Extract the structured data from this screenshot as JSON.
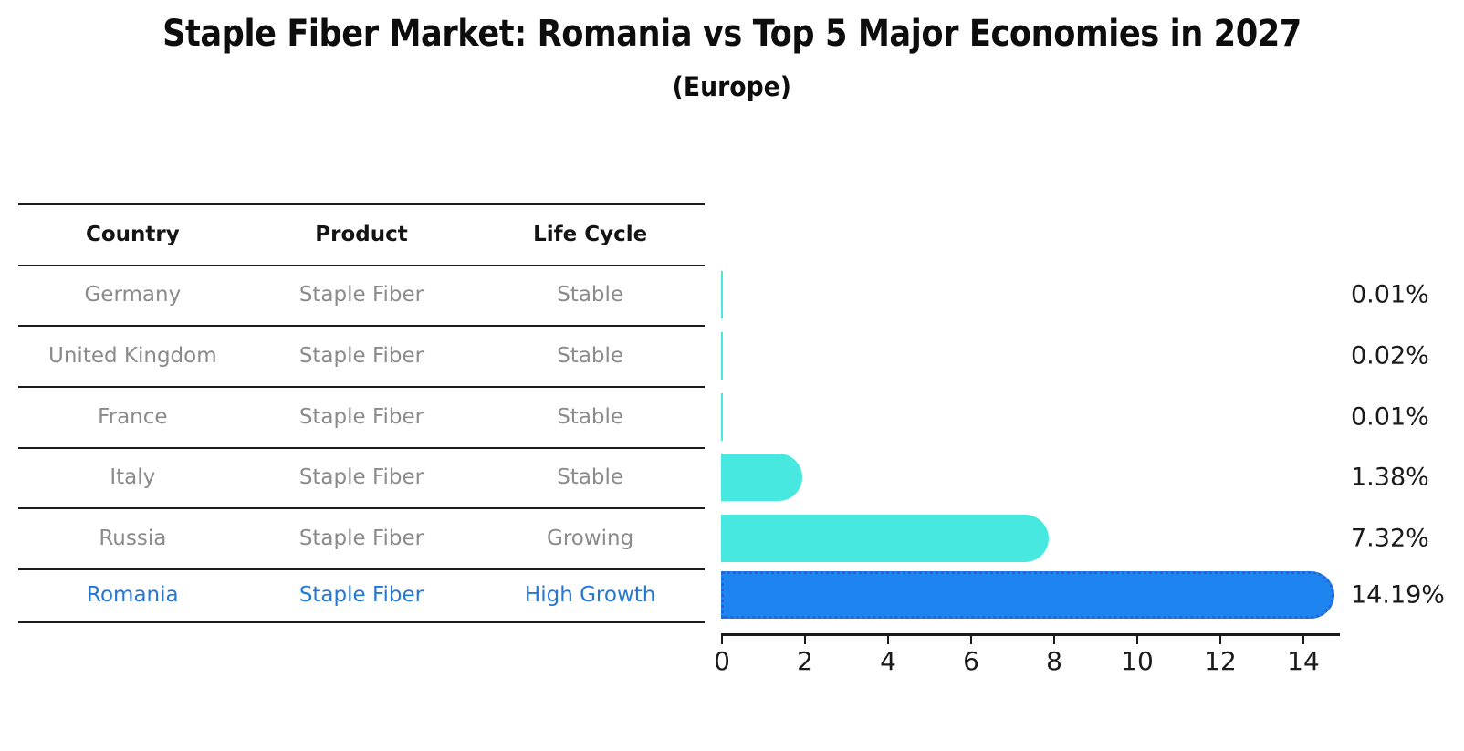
{
  "title": "Staple Fiber Market: Romania vs Top 5 Major Economies in 2027",
  "subtitle": "(Europe)",
  "table": {
    "headers": [
      "Country",
      "Product",
      "Life Cycle"
    ],
    "rows": [
      {
        "country": "Germany",
        "product": "Staple Fiber",
        "life_cycle": "Stable",
        "highlight": false
      },
      {
        "country": "United Kingdom",
        "product": "Staple Fiber",
        "life_cycle": "Stable",
        "highlight": false
      },
      {
        "country": "France",
        "product": "Staple Fiber",
        "life_cycle": "Stable",
        "highlight": false
      },
      {
        "country": "Italy",
        "product": "Staple Fiber",
        "life_cycle": "Stable",
        "highlight": false
      },
      {
        "country": "Russia",
        "product": "Staple Fiber",
        "life_cycle": "Growing",
        "highlight": false
      },
      {
        "country": "Romania",
        "product": "Staple Fiber",
        "life_cycle": "High Growth",
        "highlight": true
      }
    ]
  },
  "chart_data": {
    "type": "bar",
    "orientation": "horizontal",
    "title": "Staple Fiber Market: Romania vs Top 5 Major Economies in 2027",
    "subtitle": "(Europe)",
    "categories": [
      "Germany",
      "United Kingdom",
      "France",
      "Italy",
      "Russia",
      "Romania"
    ],
    "values": [
      0.01,
      0.02,
      0.01,
      1.38,
      7.32,
      14.19
    ],
    "value_labels": [
      "0.01%",
      "0.02%",
      "0.01%",
      "1.38%",
      "7.32%",
      "14.19%"
    ],
    "xlabel": "",
    "ylabel": "",
    "xlim": [
      0,
      14.9
    ],
    "xticks": [
      0,
      2,
      4,
      6,
      8,
      10,
      12,
      14
    ],
    "grid": false,
    "legend": false,
    "highlight_index": 5,
    "bar_color": "#47e8e0",
    "highlight_bar_color": "#1d84f0",
    "highlight_bar_border": "#2b63d6"
  },
  "colors": {
    "background": "#ffffff",
    "table_line": "#1c1c1c",
    "header_text": "#141414",
    "row_text": "#8b8b8b",
    "highlight_text": "#2577d4",
    "axis_text": "#1a1a1a"
  }
}
